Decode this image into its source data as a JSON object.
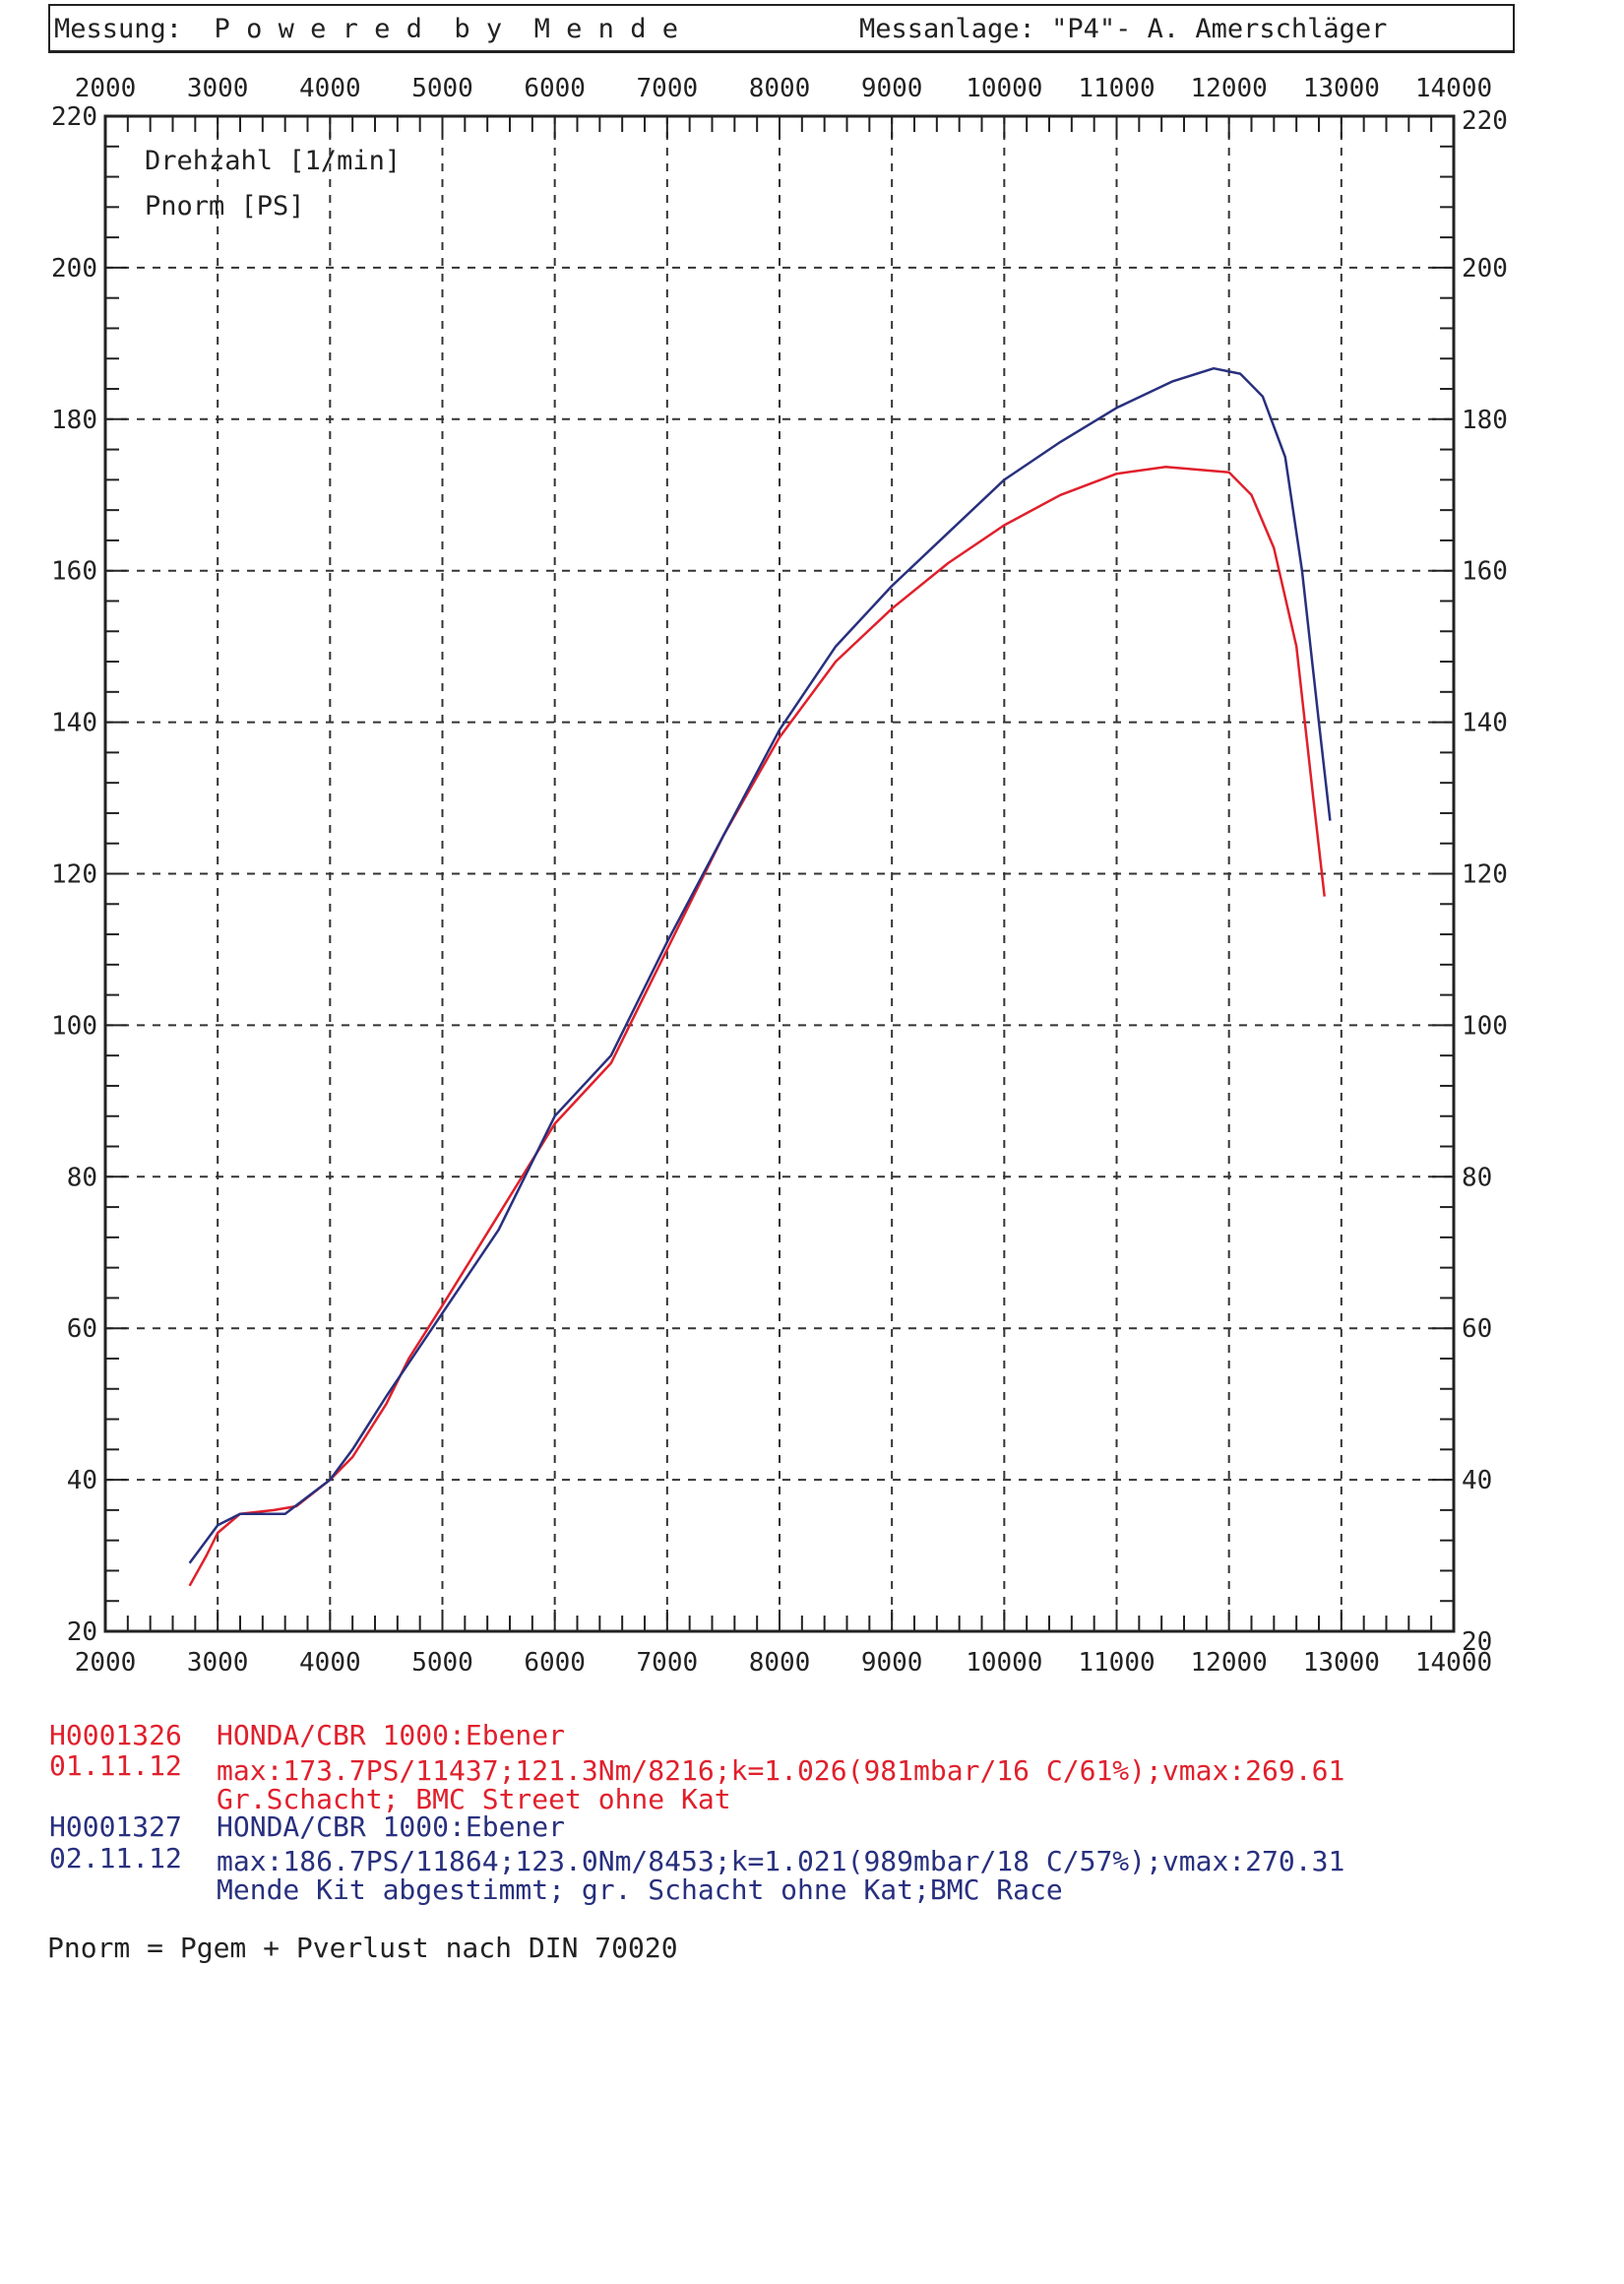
{
  "header": {
    "measurement": "Messung:  P o w e r e d  b y  M e n d e",
    "facility": "Messanlage: \"P4\"- A. Amerschläger"
  },
  "chart_data": {
    "type": "line",
    "xlabel": "Drehzahl [1/min]",
    "ylabel": "Pnorm [PS]",
    "xlim": [
      2000,
      14000
    ],
    "ylim": [
      20,
      220
    ],
    "xticks": [
      2000,
      3000,
      4000,
      5000,
      6000,
      7000,
      8000,
      9000,
      10000,
      11000,
      12000,
      13000,
      14000
    ],
    "yticks": [
      220,
      200,
      180,
      160,
      140,
      120,
      100,
      80,
      60,
      40,
      20
    ],
    "grid": true,
    "axes_labels_top_and_bottom": true,
    "axes_labels_left_and_right": true,
    "series": [
      {
        "name": "H0001326",
        "color": "#e0202c",
        "x": [
          2750,
          2900,
          3000,
          3200,
          3500,
          3700,
          4000,
          4200,
          4500,
          4700,
          5000,
          5500,
          6000,
          6500,
          7000,
          7500,
          8000,
          8500,
          9000,
          9500,
          10000,
          10500,
          11000,
          11437,
          12000,
          12200,
          12400,
          12600,
          12750,
          12850
        ],
        "y": [
          26,
          30,
          33,
          35.5,
          36,
          36.5,
          40,
          43,
          50,
          56,
          63,
          75,
          87,
          95,
          110,
          125,
          138,
          148,
          155,
          161,
          166,
          170,
          172.8,
          173.7,
          173,
          170,
          163,
          150,
          130,
          117
        ]
      },
      {
        "name": "H0001327",
        "color": "#28307e",
        "x": [
          2750,
          3000,
          3200,
          3600,
          4000,
          4200,
          4500,
          5000,
          5500,
          6000,
          6500,
          7000,
          7500,
          8000,
          8500,
          9000,
          9500,
          10000,
          10500,
          11000,
          11500,
          11864,
          12100,
          12300,
          12500,
          12650,
          12800,
          12900
        ],
        "y": [
          29,
          34,
          35.5,
          35.5,
          40,
          44,
          51,
          62,
          73,
          88,
          96,
          111,
          125,
          139,
          150,
          158,
          165,
          172,
          177,
          181.5,
          185,
          186.7,
          186,
          183,
          175,
          160,
          140,
          127
        ]
      }
    ]
  },
  "legend": {
    "run1": {
      "id": "H0001326",
      "vehicle": "HONDA/CBR 1000:Ebener",
      "date": "01.11.12",
      "stats": "max:173.7PS/11437;121.3Nm/8216;k=1.026(981mbar/16 C/61%);vmax:269.61",
      "note": "Gr.Schacht; BMC Street ohne Kat"
    },
    "run2": {
      "id": "H0001327",
      "vehicle": "HONDA/CBR 1000:Ebener",
      "date": "02.11.12",
      "stats": "max:186.7PS/11864;123.0Nm/8453;k=1.021(989mbar/18 C/57%);vmax:270.31",
      "note": "Mende Kit abgestimmt; gr. Schacht ohne Kat;BMC Race"
    },
    "footnote": "Pnorm = Pgem + Pverlust nach DIN 70020"
  }
}
